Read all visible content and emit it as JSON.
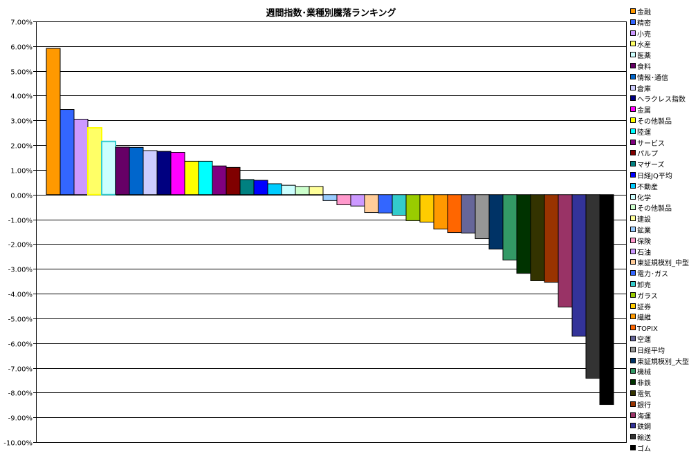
{
  "chart_data": {
    "type": "bar",
    "title": "週間指数･業種別騰落ランキング",
    "xlabel": "",
    "ylabel": "",
    "ylim": [
      -10,
      7
    ],
    "yticks": [
      "7.00%",
      "6.00%",
      "5.00%",
      "4.00%",
      "3.00%",
      "2.00%",
      "1.00%",
      "0.00%",
      "-1.00%",
      "-2.00%",
      "-3.00%",
      "-4.00%",
      "-5.00%",
      "-6.00%",
      "-7.00%",
      "-8.00%",
      "-9.00%",
      "-10.00%"
    ],
    "grid": true,
    "legend_position": "right",
    "series": [
      {
        "name": "金融",
        "value": 5.91,
        "color": "#FF9900"
      },
      {
        "name": "精密",
        "value": 3.44,
        "color": "#3366FF"
      },
      {
        "name": "小売",
        "value": 3.05,
        "color": "#CC99FF"
      },
      {
        "name": "水産",
        "value": 2.7,
        "color": "#FFFF66",
        "border": "#FFFF00"
      },
      {
        "name": "医薬",
        "value": 2.15,
        "color": "#CCFFFF",
        "border": "#33CCCC"
      },
      {
        "name": "食料",
        "value": 1.92,
        "color": "#660066"
      },
      {
        "name": "情報･通信",
        "value": 1.91,
        "color": "#0066CC"
      },
      {
        "name": "倉庫",
        "value": 1.78,
        "color": "#CCCCFF"
      },
      {
        "name": "ヘラクレス指数",
        "value": 1.75,
        "color": "#000080"
      },
      {
        "name": "金属",
        "value": 1.71,
        "color": "#FF00FF"
      },
      {
        "name": "その他製品",
        "value": 1.35,
        "color": "#FFFF00"
      },
      {
        "name": "陸運",
        "value": 1.35,
        "color": "#00FFFF"
      },
      {
        "name": "サービス",
        "value": 1.16,
        "color": "#800080"
      },
      {
        "name": "パルプ",
        "value": 1.1,
        "color": "#800000"
      },
      {
        "name": "マザーズ",
        "value": 0.61,
        "color": "#008080"
      },
      {
        "name": "日経JQ平均",
        "value": 0.58,
        "color": "#0000FF"
      },
      {
        "name": "不動産",
        "value": 0.44,
        "color": "#00CCFF"
      },
      {
        "name": "化学",
        "value": 0.38,
        "color": "#CCFFFF"
      },
      {
        "name": "その他製品",
        "value": 0.33,
        "color": "#CCFFCC"
      },
      {
        "name": "建設",
        "value": 0.33,
        "color": "#FFFF99"
      },
      {
        "name": "鉱業",
        "value": -0.24,
        "color": "#99CCFF"
      },
      {
        "name": "保険",
        "value": -0.41,
        "color": "#FF99CC"
      },
      {
        "name": "石油",
        "value": -0.46,
        "color": "#CC99FF"
      },
      {
        "name": "東証規模別_中型",
        "value": -0.72,
        "color": "#FFCC99"
      },
      {
        "name": "電力･ガス",
        "value": -0.74,
        "color": "#3366FF"
      },
      {
        "name": "卸売",
        "value": -0.83,
        "color": "#33CCCC"
      },
      {
        "name": "ガラス",
        "value": -1.05,
        "color": "#99CC00"
      },
      {
        "name": "証券",
        "value": -1.11,
        "color": "#FFCC00"
      },
      {
        "name": "繊維",
        "value": -1.39,
        "color": "#FF9900"
      },
      {
        "name": "TOPIX",
        "value": -1.53,
        "color": "#FF6600"
      },
      {
        "name": "空運",
        "value": -1.55,
        "color": "#666699"
      },
      {
        "name": "日経平均",
        "value": -1.78,
        "color": "#969696"
      },
      {
        "name": "東証規模別_大型",
        "value": -2.2,
        "color": "#003366"
      },
      {
        "name": "機械",
        "value": -2.64,
        "color": "#339966"
      },
      {
        "name": "非鉄",
        "value": -3.18,
        "color": "#003300"
      },
      {
        "name": "電気",
        "value": -3.48,
        "color": "#333300"
      },
      {
        "name": "銀行",
        "value": -3.54,
        "color": "#993300"
      },
      {
        "name": "海運",
        "value": -4.54,
        "color": "#993366"
      },
      {
        "name": "鉄鋼",
        "value": -5.72,
        "color": "#333399"
      },
      {
        "name": "輸送",
        "value": -7.42,
        "color": "#333333"
      },
      {
        "name": "ゴム",
        "value": -8.48,
        "color": "#000000"
      }
    ]
  }
}
